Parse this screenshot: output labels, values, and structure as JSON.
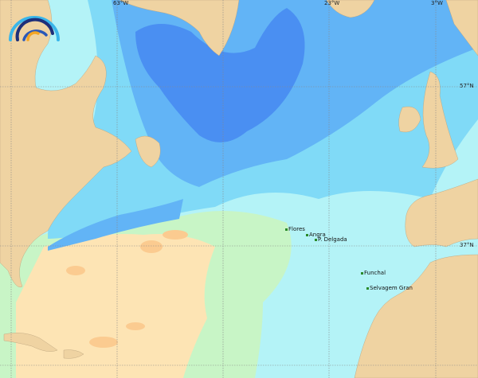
{
  "colors": {
    "land": "#efd3a2",
    "ocean_light": "#b4f3f7",
    "ocean_mid": "#80daf7",
    "ocean_blue": "#62b4f6",
    "ocean_deep": "#4a8ff2",
    "warm_green": "#c8f5c6",
    "warm_peach": "#fde4b4",
    "warm_orange": "#fbcb90"
  },
  "grid": {
    "longitudes": [
      "63°W",
      "23°W",
      "3°W"
    ],
    "latitudes": [
      "57°N",
      "37°N"
    ]
  },
  "places": [
    "Flores",
    "Angra",
    "P. Delgada",
    "Funchal",
    "Selvagem Gran"
  ],
  "logo": {
    "icon": "wave-arcs-logo-icon"
  }
}
